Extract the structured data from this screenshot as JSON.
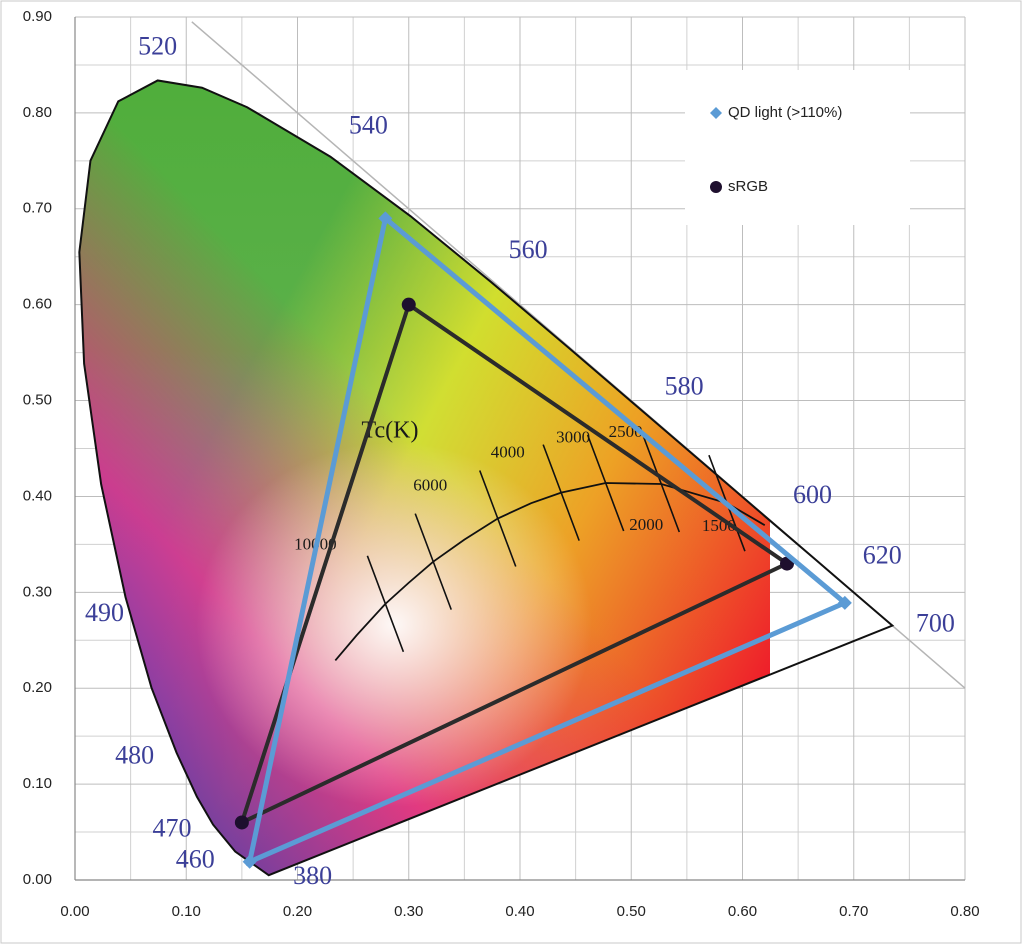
{
  "chart_data": {
    "type": "scatter",
    "xlim": [
      0,
      0.8
    ],
    "xticks": [
      {
        "value": 0,
        "label": "0.00"
      },
      {
        "value": 0.1,
        "label": "0.10"
      },
      {
        "value": 0.2,
        "label": "0.20"
      },
      {
        "value": 0.3,
        "label": "0.30"
      },
      {
        "value": 0.4,
        "label": "0.40"
      },
      {
        "value": 0.5,
        "label": "0.50"
      },
      {
        "value": 0.6,
        "label": "0.60"
      },
      {
        "value": 0.7,
        "label": "0.70"
      },
      {
        "value": 0.8,
        "label": "0.80"
      }
    ],
    "ylim": [
      0,
      0.9
    ],
    "yticks": [
      {
        "value": 0,
        "label": "0.00"
      },
      {
        "value": 0.1,
        "label": "0.10"
      },
      {
        "value": 0.2,
        "label": "0.20"
      },
      {
        "value": 0.3,
        "label": "0.30"
      },
      {
        "value": 0.4,
        "label": "0.40"
      },
      {
        "value": 0.5,
        "label": "0.50"
      },
      {
        "value": 0.6,
        "label": "0.60"
      },
      {
        "value": 0.7,
        "label": "0.70"
      },
      {
        "value": 0.8,
        "label": "0.80"
      },
      {
        "value": 0.9,
        "label": "0.90"
      }
    ],
    "grid": true,
    "legend": "upper right",
    "series": [
      {
        "name": "QD light (>110%)",
        "color": "#5b9bd5",
        "marker": "diamond",
        "x": [
          0.279,
          0.692,
          0.157
        ],
        "y": [
          0.69,
          0.289,
          0.019
        ]
      },
      {
        "name": "sRGB",
        "color": "#2b2b2b",
        "marker": "circle",
        "x": [
          0.3,
          0.64,
          0.15
        ],
        "y": [
          0.6,
          0.33,
          0.06
        ]
      }
    ],
    "spectral_locus": {
      "x": [
        0.1741,
        0.144,
        0.1241,
        0.1096,
        0.0913,
        0.0687,
        0.0454,
        0.0235,
        0.0082,
        0.0039,
        0.0139,
        0.0389,
        0.0743,
        0.1142,
        0.1547,
        0.2296,
        0.3016,
        0.3731,
        0.4441,
        0.5125,
        0.5752,
        0.627,
        0.6658,
        0.6915,
        0.719,
        0.7347
      ],
      "y": [
        0.005,
        0.0297,
        0.0578,
        0.0868,
        0.1327,
        0.2007,
        0.295,
        0.4127,
        0.5384,
        0.6548,
        0.7502,
        0.812,
        0.8338,
        0.8262,
        0.8059,
        0.7543,
        0.6923,
        0.6245,
        0.5547,
        0.4866,
        0.4242,
        0.3725,
        0.334,
        0.3083,
        0.2809,
        0.2653
      ]
    },
    "wavelength_labels": [
      {
        "text": "520",
        "x": 0.0743,
        "y": 0.8338
      },
      {
        "text": "540",
        "x": 0.2296,
        "y": 0.7543
      },
      {
        "text": "560",
        "x": 0.3731,
        "y": 0.6245
      },
      {
        "text": "580",
        "x": 0.5125,
        "y": 0.4866
      },
      {
        "text": "600",
        "x": 0.627,
        "y": 0.3725
      },
      {
        "text": "620",
        "x": 0.6915,
        "y": 0.3083
      },
      {
        "text": "700",
        "x": 0.7347,
        "y": 0.2653
      },
      {
        "text": "490",
        "x": 0.0454,
        "y": 0.295
      },
      {
        "text": "480",
        "x": 0.0913,
        "y": 0.1327
      },
      {
        "text": "470",
        "x": 0.1241,
        "y": 0.0578
      },
      {
        "text": "460",
        "x": 0.144,
        "y": 0.0297
      },
      {
        "text": "380",
        "x": 0.1741,
        "y": 0.005
      }
    ],
    "planckian_locus": {
      "label": "Tc(K)",
      "x": [
        0.234,
        0.253,
        0.279,
        0.3,
        0.322,
        0.35,
        0.38,
        0.41,
        0.437,
        0.477,
        0.527,
        0.586,
        0.62
      ],
      "y": [
        0.229,
        0.255,
        0.288,
        0.31,
        0.332,
        0.355,
        0.377,
        0.393,
        0.404,
        0.414,
        0.413,
        0.393,
        0.37
      ]
    },
    "temperature_labels": [
      {
        "text": "10000",
        "x": 0.279,
        "y": 0.288
      },
      {
        "text": "6000",
        "x": 0.322,
        "y": 0.332
      },
      {
        "text": "4000",
        "x": 0.38,
        "y": 0.377
      },
      {
        "text": "3000",
        "x": 0.437,
        "y": 0.404
      },
      {
        "text": "2500",
        "x": 0.477,
        "y": 0.414
      },
      {
        "text": "2000",
        "x": 0.527,
        "y": 0.413
      },
      {
        "text": "1500",
        "x": 0.586,
        "y": 0.393
      }
    ]
  }
}
